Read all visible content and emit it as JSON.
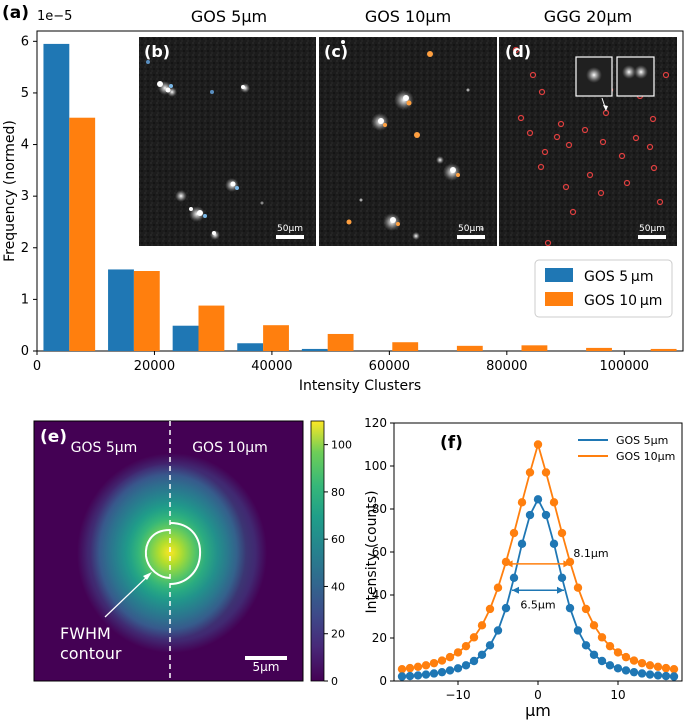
{
  "colors": {
    "blue": "#1f77b4",
    "orange": "#ff7f0e",
    "micro_bg": "#1a1a1a",
    "viridis_dark": "#440154",
    "viridis_light": "#fde725"
  },
  "panel_a": {
    "label": "(a)",
    "scale_note": "1e−5",
    "inset_titles": [
      "GOS 5µm",
      "GOS 10µm",
      "GGG 20µm"
    ],
    "inset_labels": [
      "(b)",
      "(c)",
      "(d)"
    ],
    "scalebar_label": "50µm"
  },
  "panel_e": {
    "label": "(e)",
    "left_text": "GOS 5µm",
    "right_text": "GOS 10µm",
    "annotation_line1": "FWHM",
    "annotation_line2": "contour",
    "scalebar_label": "5µm",
    "colorbar_ticks": [
      "0",
      "20",
      "40",
      "60",
      "80",
      "100"
    ],
    "colorbar_range": [
      0,
      110
    ]
  },
  "chart_data": [
    {
      "type": "bar",
      "title": "",
      "xlabel": "Intensity Clusters",
      "ylabel": "Frequency (normed)",
      "xlim": [
        0,
        110000
      ],
      "ylim": [
        0,
        6.2
      ],
      "bin_edges": [
        0,
        11000,
        22000,
        33000,
        44000,
        55000,
        66000,
        77000,
        88000,
        99000,
        110000
      ],
      "x_ticks": [
        0,
        20000,
        40000,
        60000,
        80000,
        100000
      ],
      "x_tick_labels": [
        "0",
        "20000",
        "40000",
        "60000",
        "80000",
        "100000"
      ],
      "y_ticks": [
        0,
        1,
        2,
        3,
        4,
        5,
        6
      ],
      "y_tick_labels": [
        "0",
        "1",
        "2",
        "3",
        "4",
        "5",
        "6"
      ],
      "legend_position": "lower-right",
      "series": [
        {
          "name": "GOS 5µm",
          "legend": "GOS 5 µm",
          "values": [
            5.95,
            1.58,
            0.49,
            0.15,
            0.04,
            0,
            0,
            0,
            0,
            0
          ]
        },
        {
          "name": "GOS 10µm",
          "legend": "GOS 10 µm",
          "values": [
            4.52,
            1.55,
            0.88,
            0.5,
            0.33,
            0.17,
            0.1,
            0.11,
            0.06,
            0.04
          ]
        }
      ]
    },
    {
      "type": "line",
      "panel_label": "(f)",
      "xlabel": "µm",
      "ylabel": "Intensity (counts)",
      "xlim": [
        -18,
        18
      ],
      "ylim": [
        0,
        120
      ],
      "x_ticks": [
        -10,
        0,
        10
      ],
      "x_tick_labels": [
        "−10",
        "0",
        "10"
      ],
      "y_ticks": [
        0,
        20,
        40,
        60,
        80,
        100,
        120
      ],
      "y_tick_labels": [
        "0",
        "20",
        "40",
        "60",
        "80",
        "100",
        "120"
      ],
      "legend_position": "top-right",
      "x": [
        -17,
        -16,
        -15,
        -14,
        -13,
        -12,
        -11,
        -10,
        -9,
        -8,
        -7,
        -6,
        -5,
        -4,
        -3,
        -2,
        -1,
        0,
        1,
        2,
        3,
        4,
        5,
        6,
        7,
        8,
        9,
        10,
        11,
        12,
        13,
        14,
        15,
        16,
        17
      ],
      "series": [
        {
          "name": "GOS 5µm",
          "values": [
            2.1,
            2.3,
            2.6,
            3,
            3.5,
            4.1,
            4.9,
            5.9,
            7.3,
            9.3,
            12.2,
            16.6,
            23.5,
            33.9,
            48,
            63.8,
            77.2,
            84.5,
            77.2,
            63.8,
            48,
            33.9,
            23.5,
            16.6,
            12.2,
            9.3,
            7.3,
            5.9,
            4.9,
            4.1,
            3.5,
            3,
            2.6,
            2.3,
            2.1
          ]
        },
        {
          "name": "GOS 10µm",
          "values": [
            5.5,
            6,
            6.6,
            7.3,
            8.3,
            9.5,
            11.1,
            13.3,
            16.2,
            20.3,
            25.9,
            33.5,
            43.4,
            55.4,
            68.8,
            83.1,
            97,
            110,
            97,
            83.1,
            68.8,
            55.4,
            43.4,
            33.5,
            25.9,
            20.3,
            16.2,
            13.3,
            11.1,
            9.5,
            8.3,
            7.3,
            6.6,
            6,
            5.5
          ]
        }
      ],
      "annotations": [
        {
          "text": "8.1µm",
          "y": 54.5,
          "x_from": -4.05,
          "x_to": 4.05,
          "series": 1
        },
        {
          "text": "6.5µm",
          "y": 42.2,
          "x_from": -3.25,
          "x_to": 3.25,
          "series": 0
        }
      ]
    }
  ]
}
